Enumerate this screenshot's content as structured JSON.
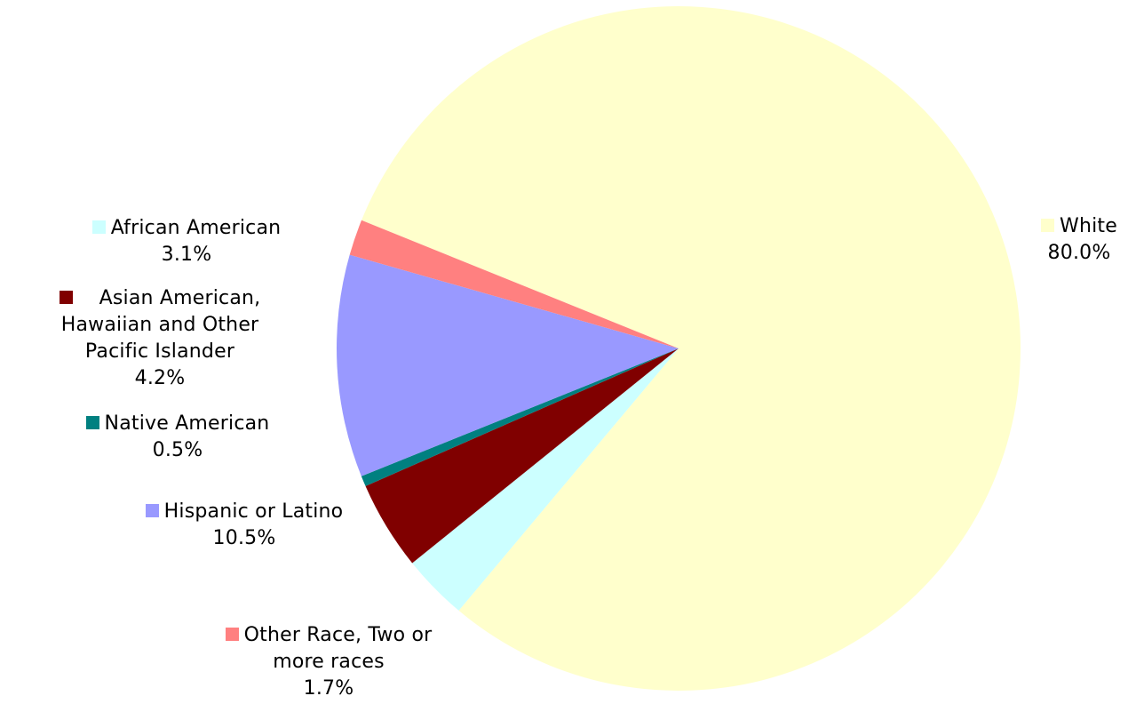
{
  "chart_data": {
    "type": "pie",
    "title": "",
    "legend": "data labels beside slices",
    "slices": [
      {
        "name": "White",
        "value": 80.0,
        "percent_label": "80.0%",
        "color": "#FFFFCC",
        "label_lines": [
          "White"
        ]
      },
      {
        "name": "African American",
        "value": 3.1,
        "percent_label": "3.1%",
        "color": "#CCFFFF",
        "label_lines": [
          "African American"
        ]
      },
      {
        "name": "Asian American, Hawaiian and Other Pacific Islander",
        "value": 4.2,
        "percent_label": "4.2%",
        "color": "#800000",
        "label_lines": [
          "Asian American,",
          "Hawaiian and Other",
          "Pacific Islander"
        ]
      },
      {
        "name": "Native American",
        "value": 0.5,
        "percent_label": "0.5%",
        "color": "#008080",
        "label_lines": [
          "Native American"
        ]
      },
      {
        "name": "Hispanic or Latino",
        "value": 10.5,
        "percent_label": "10.5%",
        "color": "#9999FF",
        "label_lines": [
          "Hispanic or Latino"
        ]
      },
      {
        "name": "Other Race, Two or more races",
        "value": 1.7,
        "percent_label": "1.7%",
        "color": "#FF8080",
        "label_lines": [
          "Other Race, Two or",
          "more races"
        ]
      }
    ]
  }
}
